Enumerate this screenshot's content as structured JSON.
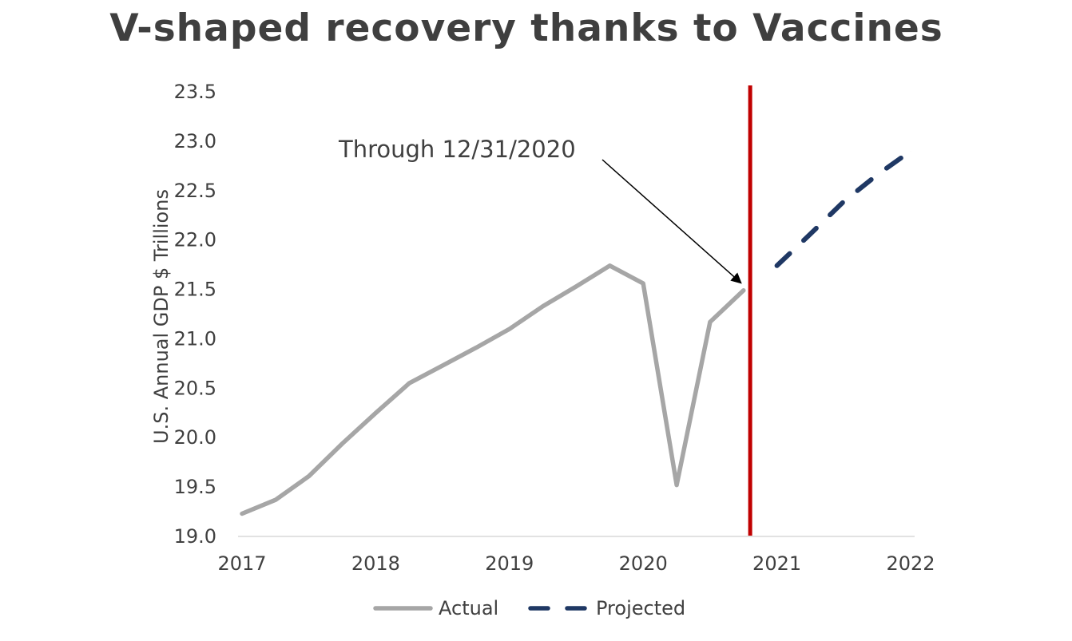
{
  "chart_data": {
    "type": "line",
    "title": "V-shaped recovery thanks to Vaccines",
    "ylabel": "U.S. Annual GDP $ Trillions",
    "xlabel": "",
    "ylim": [
      19.0,
      23.5
    ],
    "xlim": [
      2017,
      2022
    ],
    "y_ticks": [
      "19.0",
      "19.5",
      "20.0",
      "20.5",
      "21.0",
      "21.5",
      "22.0",
      "22.5",
      "23.0",
      "23.5"
    ],
    "x_ticks": [
      "2017",
      "2018",
      "2019",
      "2020",
      "2021",
      "2022"
    ],
    "grid": false,
    "legend_position": "bottom",
    "series": [
      {
        "name": "Actual",
        "style": "solid",
        "color": "#a6a6a6",
        "points": [
          [
            2017.0,
            19.23
          ],
          [
            2017.25,
            19.37
          ],
          [
            2017.5,
            19.61
          ],
          [
            2017.75,
            19.94
          ],
          [
            2018.0,
            20.25
          ],
          [
            2018.25,
            20.55
          ],
          [
            2018.5,
            20.73
          ],
          [
            2018.75,
            20.91
          ],
          [
            2019.0,
            21.1
          ],
          [
            2019.25,
            21.33
          ],
          [
            2019.5,
            21.53
          ],
          [
            2019.75,
            21.74
          ],
          [
            2020.0,
            21.56
          ],
          [
            2020.25,
            19.52
          ],
          [
            2020.5,
            21.17
          ],
          [
            2020.75,
            21.49
          ]
        ]
      },
      {
        "name": "Projected",
        "style": "dashed",
        "color": "#1f3864",
        "points": [
          [
            2021.0,
            21.74
          ],
          [
            2021.25,
            22.06
          ],
          [
            2021.5,
            22.39
          ],
          [
            2021.75,
            22.66
          ],
          [
            2022.0,
            22.9
          ]
        ]
      }
    ],
    "reference_line": {
      "x": 2020.8,
      "color": "#c00000"
    },
    "annotation": {
      "text": "Through 12/31/2020",
      "target": [
        2020.75,
        21.5
      ]
    }
  }
}
